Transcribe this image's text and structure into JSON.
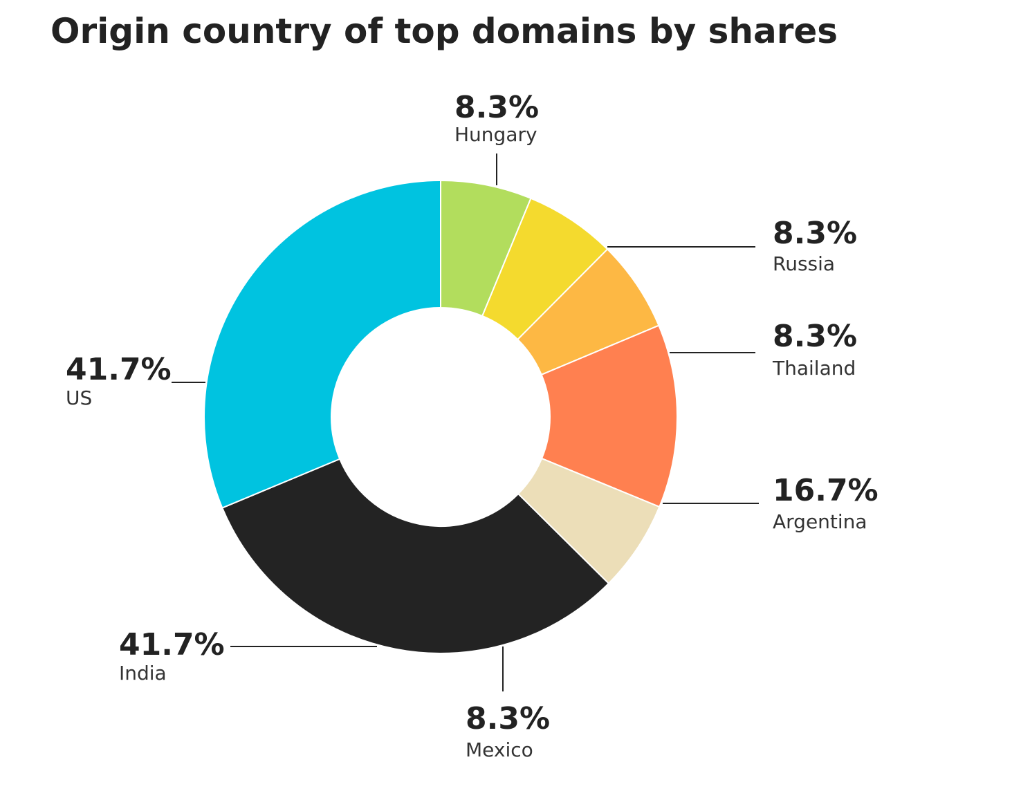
{
  "chart_data": {
    "type": "donut",
    "title": "Origin country of top domains by shares",
    "categories": [
      "Hungary",
      "Russia",
      "Thailand",
      "Argentina",
      "Mexico",
      "India",
      "US"
    ],
    "values": [
      8.3,
      8.3,
      8.3,
      16.7,
      8.3,
      41.7,
      41.7
    ],
    "value_labels": [
      "8.3%",
      "8.3%",
      "8.3%",
      "16.7%",
      "8.3%",
      "41.7%",
      "41.7%"
    ],
    "colors": [
      "#b2dd5d",
      "#f4da2e",
      "#fdb844",
      "#ff8050",
      "#ecdeb8",
      "#232323",
      "#00c3e0"
    ]
  }
}
